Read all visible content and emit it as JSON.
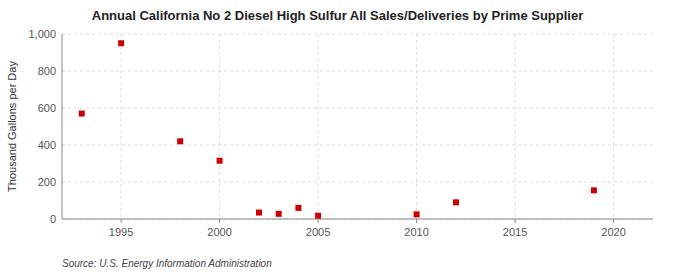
{
  "chart_data": {
    "type": "scatter",
    "title": "Annual California No 2 Diesel High Sulfur All Sales/Deliveries by Prime Supplier",
    "y_label": "Thousand Gallons per Day",
    "annotations": [
      "Source: U.S. Energy Information Administration"
    ],
    "x": [
      1993,
      1995,
      1998,
      2000,
      2002,
      2003,
      2004,
      2005,
      2010,
      2012,
      2019
    ],
    "values": [
      570,
      950,
      420,
      315,
      35,
      28,
      60,
      18,
      25,
      90,
      155
    ],
    "color": "#cc0000",
    "marker": "square",
    "xlim": [
      1992,
      2022
    ],
    "ylim": [
      0,
      1000
    ],
    "xticks": [
      1995,
      2000,
      2005,
      2010,
      2015,
      2020
    ],
    "yticks": [
      0,
      200,
      400,
      600,
      800,
      {
        "value": 1000,
        "label": "1,000"
      }
    ],
    "grid": true
  }
}
